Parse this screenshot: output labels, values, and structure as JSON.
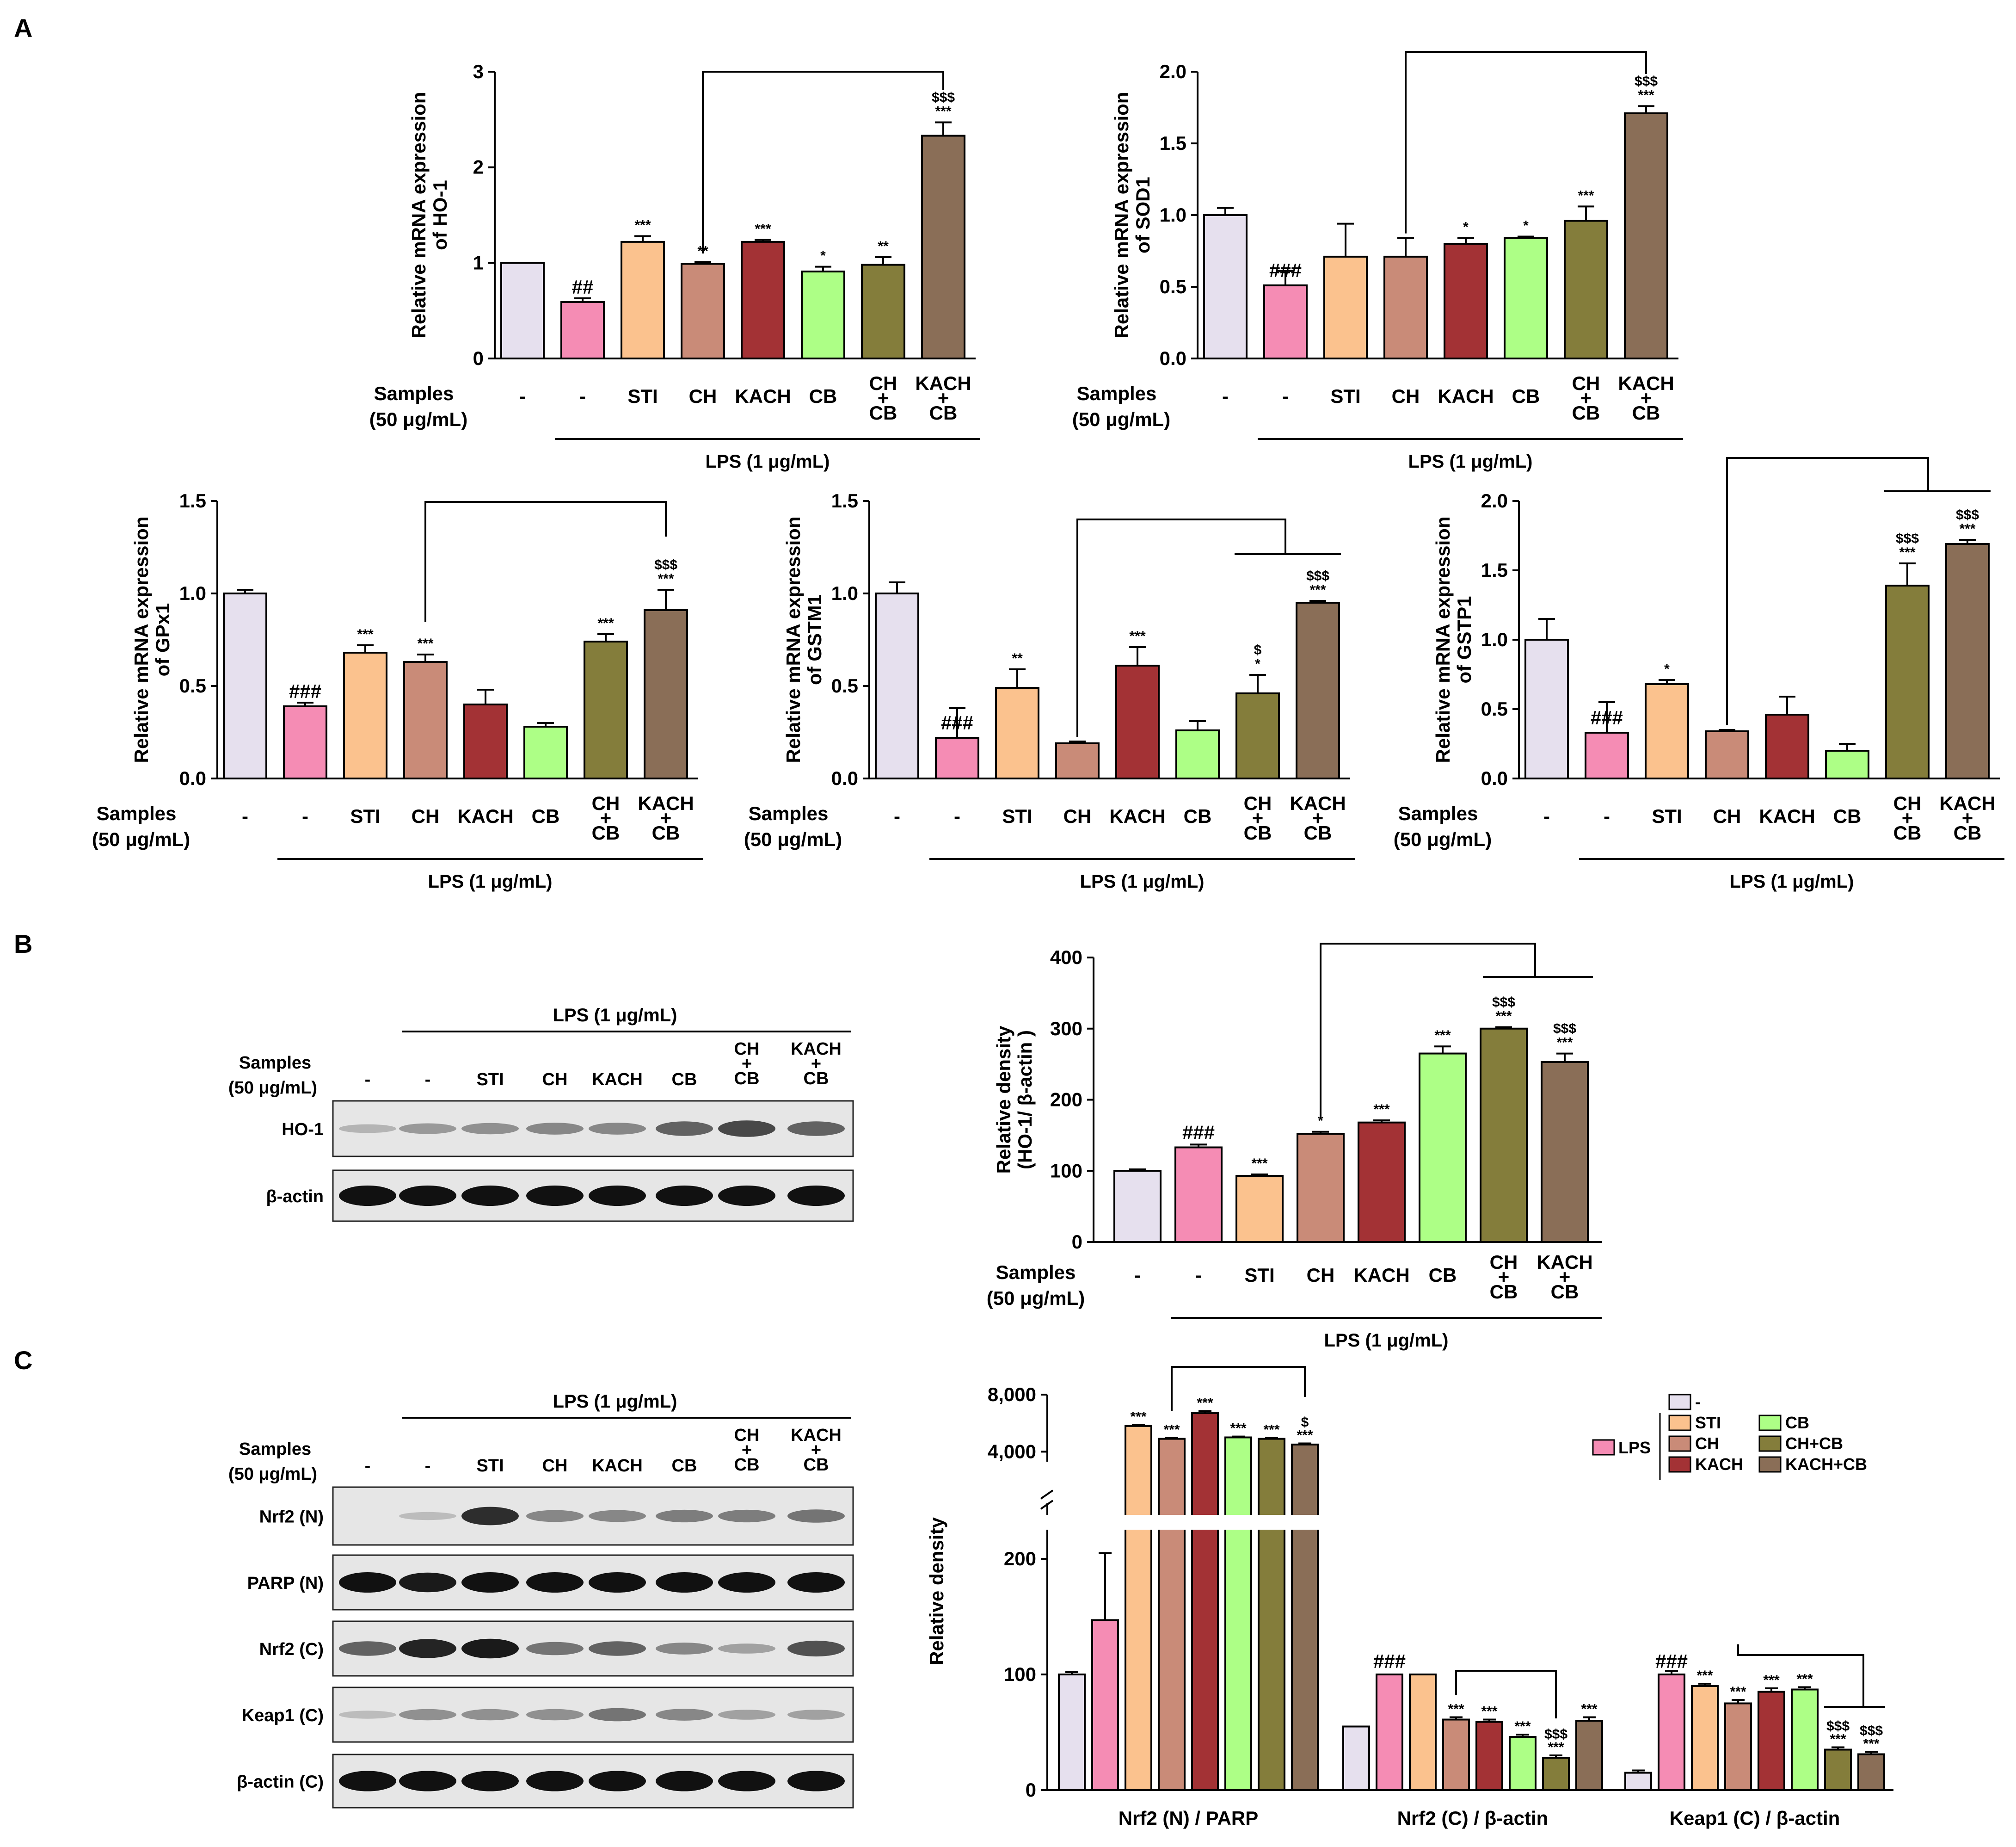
{
  "figure": {
    "panel_labels": [
      "A",
      "B",
      "C"
    ],
    "samples_label_1": "Samples",
    "samples_label_2": "(50 μg/mL)",
    "lps_label": "LPS (1 μg/mL)",
    "categories": [
      "-",
      "-",
      "STI",
      "CH",
      "KACH",
      "CB",
      "CH\n+\nCB",
      "KACH\n+\nCB"
    ]
  },
  "colors": {
    "ctrl": "#e6e0ee",
    "lps": "#f58cb4",
    "sti": "#fbc28e",
    "ch": "#c98b78",
    "kach": "#a33235",
    "cb": "#adff86",
    "chcb": "#847d3b",
    "kachcb": "#8a6e57"
  },
  "chart_data": [
    {
      "type": "bar",
      "title": "",
      "ylabel": "Relative mRNA expression of HO-1",
      "ylim": [
        0,
        3
      ],
      "yticks": [
        "0",
        "1",
        "2",
        "3"
      ],
      "categories": [
        "-",
        "-",
        "STI",
        "CH",
        "KACH",
        "CB",
        "CH+CB",
        "KACH+CB"
      ],
      "values": [
        1.0,
        0.59,
        1.22,
        0.99,
        1.22,
        0.91,
        0.98,
        2.33
      ],
      "errors": [
        0,
        0.04,
        0.06,
        0.02,
        0.02,
        0.05,
        0.08,
        0.14
      ],
      "annotations": [
        "",
        "##",
        "***",
        "**",
        "***",
        "*",
        "**",
        "$$$\n***"
      ]
    },
    {
      "type": "bar",
      "title": "",
      "ylabel": "Relative mRNA expression of SOD1",
      "ylim": [
        0,
        2.0
      ],
      "yticks": [
        "0.0",
        "0.5",
        "1.0",
        "1.5",
        "2.0"
      ],
      "categories": [
        "-",
        "-",
        "STI",
        "CH",
        "KACH",
        "CB",
        "CH+CB",
        "KACH+CB"
      ],
      "values": [
        1.0,
        0.51,
        0.71,
        0.71,
        0.8,
        0.84,
        0.96,
        1.71
      ],
      "errors": [
        0.05,
        0.1,
        0.23,
        0.13,
        0.04,
        0.01,
        0.1,
        0.05
      ],
      "annotations": [
        "",
        "###",
        "",
        "",
        "*",
        "*",
        "***",
        "$$$\n***"
      ]
    },
    {
      "type": "bar",
      "title": "",
      "ylabel": "Relative mRNA expression of GPx1",
      "ylim": [
        0,
        1.5
      ],
      "yticks": [
        "0.0",
        "0.5",
        "1.0",
        "1.5"
      ],
      "categories": [
        "-",
        "-",
        "STI",
        "CH",
        "KACH",
        "CB",
        "CH+CB",
        "KACH+CB"
      ],
      "values": [
        1.0,
        0.39,
        0.68,
        0.63,
        0.4,
        0.28,
        0.74,
        0.91
      ],
      "errors": [
        0.02,
        0.02,
        0.04,
        0.04,
        0.08,
        0.02,
        0.04,
        0.11
      ],
      "annotations": [
        "",
        "###",
        "***",
        "***",
        "",
        "",
        "***",
        "$$$\n***"
      ]
    },
    {
      "type": "bar",
      "title": "",
      "ylabel": "Relative mRNA expression of GSTM1",
      "ylim": [
        0,
        1.5
      ],
      "yticks": [
        "0.0",
        "0.5",
        "1.0",
        "1.5"
      ],
      "categories": [
        "-",
        "-",
        "STI",
        "CH",
        "KACH",
        "CB",
        "CH+CB",
        "KACH+CB"
      ],
      "values": [
        1.0,
        0.22,
        0.49,
        0.19,
        0.61,
        0.26,
        0.46,
        0.95
      ],
      "errors": [
        0.06,
        0.16,
        0.1,
        0.01,
        0.1,
        0.05,
        0.1,
        0.01
      ],
      "annotations": [
        "",
        "###",
        "**",
        "",
        "***",
        "",
        "$\n*",
        "$$$\n***"
      ]
    },
    {
      "type": "bar",
      "title": "",
      "ylabel": "Relative mRNA expression of GSTP1",
      "ylim": [
        0,
        2.0
      ],
      "yticks": [
        "0.0",
        "0.5",
        "1.0",
        "1.5",
        "2.0"
      ],
      "categories": [
        "-",
        "-",
        "STI",
        "CH",
        "KACH",
        "CB",
        "CH+CB",
        "KACH+CB"
      ],
      "values": [
        1.0,
        0.33,
        0.68,
        0.34,
        0.46,
        0.2,
        1.39,
        1.69
      ],
      "errors": [
        0.15,
        0.22,
        0.03,
        0.01,
        0.13,
        0.05,
        0.16,
        0.03
      ],
      "annotations": [
        "",
        "###",
        "*",
        "",
        "",
        "",
        "$$$\n***",
        "$$$\n***"
      ]
    },
    {
      "type": "bar",
      "title": "",
      "ylabel": "Relative density (HO-1/ β-actin )",
      "ylim": [
        0,
        400
      ],
      "yticks": [
        "0",
        "100",
        "200",
        "300",
        "400"
      ],
      "categories": [
        "-",
        "-",
        "STI",
        "CH",
        "KACH",
        "CB",
        "CH+CB",
        "KACH+CB"
      ],
      "values": [
        100,
        133,
        93,
        152,
        168,
        265,
        300,
        253
      ],
      "errors": [
        2,
        4,
        2,
        3,
        3,
        10,
        2,
        12
      ],
      "annotations": [
        "",
        "###",
        "***",
        "*",
        "***",
        "***",
        "$$$\n***",
        "$$$\n***"
      ]
    },
    {
      "type": "bar",
      "title": "",
      "ylabel": "Relative density",
      "yticks_lower": [
        "0",
        "100",
        "200"
      ],
      "yticks_upper": [
        "4,000",
        "8,000"
      ],
      "groups": [
        "Nrf2 (N) / PARP",
        "Nrf2 (C) / β-actin",
        "Keap1 (C) / β-actin"
      ],
      "series": [
        {
          "name": "-",
          "values": [
            100,
            55,
            15
          ],
          "errors": [
            2,
            0,
            2
          ]
        },
        {
          "name": "LPS",
          "values": [
            147,
            100,
            100
          ],
          "errors": [
            58,
            0,
            3
          ]
        },
        {
          "name": "STI",
          "values": [
            5800,
            100,
            90
          ],
          "errors": [
            80,
            0,
            2
          ]
        },
        {
          "name": "CH",
          "values": [
            4900,
            61,
            75
          ],
          "errors": [
            60,
            2,
            3
          ]
        },
        {
          "name": "KACH",
          "values": [
            6700,
            59,
            85
          ],
          "errors": [
            150,
            2,
            3
          ]
        },
        {
          "name": "CB",
          "values": [
            5000,
            46,
            87
          ],
          "errors": [
            60,
            2,
            2
          ]
        },
        {
          "name": "CH+CB",
          "values": [
            4900,
            28,
            35
          ],
          "errors": [
            60,
            2,
            2
          ]
        },
        {
          "name": "KACH+CB",
          "values": [
            4500,
            60,
            31
          ],
          "errors": [
            80,
            3,
            2
          ]
        }
      ],
      "annotations": [
        [
          "",
          "",
          "***",
          "***",
          "***",
          "***",
          "***",
          "$\n***"
        ],
        [
          "",
          "###",
          "",
          "***",
          "***",
          "***",
          "$$$\n***",
          "***"
        ],
        [
          "",
          "###",
          "***",
          "***",
          "***",
          "***",
          "$$$\n***",
          "$$$\n***"
        ]
      ],
      "legend": {
        "label_lps": "LPS",
        "items": [
          "-",
          "STI",
          "CB",
          "CH",
          "CH+CB",
          "KACH",
          "KACH+CB"
        ]
      }
    }
  ],
  "blots": {
    "b_rows": [
      "HO-1",
      "β-actin"
    ],
    "c_rows": [
      "Nrf2 (N)",
      "PARP (N)",
      "Nrf2 (C)",
      "Keap1 (C)",
      "β-actin (C)"
    ]
  }
}
